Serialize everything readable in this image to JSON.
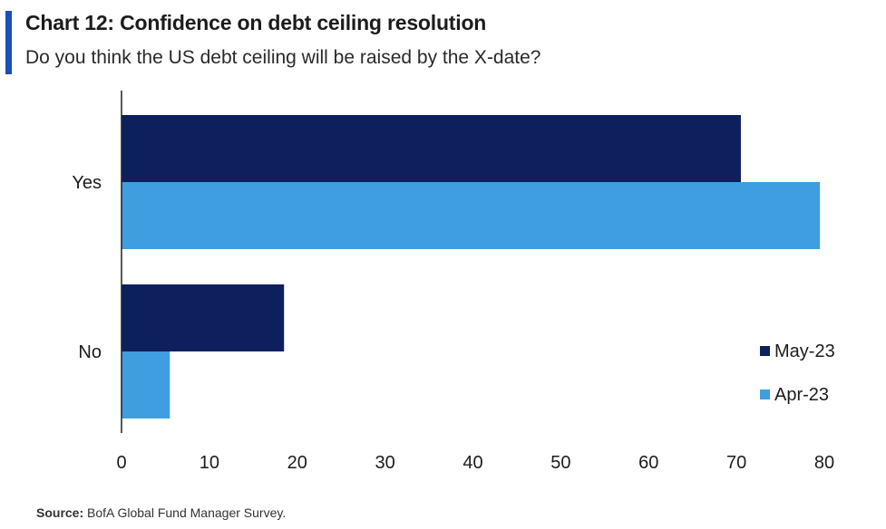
{
  "header": {
    "title": "Chart 12: Confidence on debt ceiling resolution",
    "subtitle": "Do you think the US debt ceiling will be raised by the X-date?"
  },
  "footer": {
    "source_label": "Source:",
    "source_text": "BofA Global Fund Manager Survey."
  },
  "colors": {
    "accent": "#1a4fb8",
    "may23": "#0e1f5e",
    "apr23": "#3f9ee0",
    "axis": "#222222"
  },
  "chart_data": {
    "type": "bar",
    "orientation": "horizontal",
    "categories": [
      "Yes",
      "No"
    ],
    "series": [
      {
        "name": "May-23",
        "values": [
          70.5,
          18.5
        ]
      },
      {
        "name": "Apr-23",
        "values": [
          79.5,
          5.5
        ]
      }
    ],
    "xlim": [
      0,
      80
    ],
    "xticks": [
      0,
      10,
      20,
      30,
      40,
      50,
      60,
      70,
      80
    ],
    "grid": false,
    "legend_position": "bottom-right"
  }
}
